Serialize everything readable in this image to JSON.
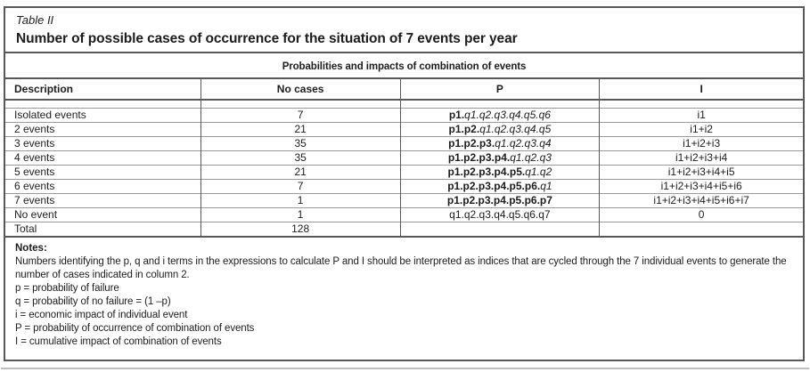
{
  "figure": {
    "label": "Table II",
    "title": "Number of possible cases of occurrence for the situation of 7 events per year",
    "subtitle": "Probabilities and impacts of combination of events",
    "columns": [
      "Description",
      "No cases",
      "P",
      "I"
    ],
    "rows": [
      {
        "description": "Isolated events",
        "cases": "7",
        "p_bold": "p1.",
        "p_italic": "q1.q2.q3.q4.q5.q6",
        "p_plain": "",
        "impact": "i1"
      },
      {
        "description": "2 events",
        "cases": "21",
        "p_bold": "p1.p2.",
        "p_italic": "q1.q2.q3.q4.q5",
        "p_plain": "",
        "impact": "i1+i2"
      },
      {
        "description": "3 events",
        "cases": "35",
        "p_bold": "p1.p2.p3.",
        "p_italic": "q1.q2.q3.q4",
        "p_plain": "",
        "impact": "i1+i2+i3"
      },
      {
        "description": "4 events",
        "cases": "35",
        "p_bold": "p1.p2.p3.p4.",
        "p_italic": "q1.q2.q3",
        "p_plain": "",
        "impact": "i1+i2+i3+i4"
      },
      {
        "description": "5 events",
        "cases": "21",
        "p_bold": "p1.p2.p3.p4.p5.",
        "p_italic": "q1.q2",
        "p_plain": "",
        "impact": "i1+i2+i3+i4+i5"
      },
      {
        "description": "6 events",
        "cases": "7",
        "p_bold": "p1.p2.p3.p4.p5.p6.",
        "p_italic": "q1",
        "p_plain": "",
        "impact": "i1+i2+i3+i4+i5+i6"
      },
      {
        "description": "7 events",
        "cases": "1",
        "p_bold": "p1.p2.p3.p4.p5.p6.p7",
        "p_italic": "",
        "p_plain": "",
        "impact": "i1+i2+i3+i4+i5+i6+i7"
      },
      {
        "description": "No event",
        "cases": "1",
        "p_bold": "",
        "p_italic": "",
        "p_plain": "q1.q2.q3.q4.q5.q6.q7",
        "impact": "0"
      },
      {
        "description": "Total",
        "cases": "128",
        "p_bold": "",
        "p_italic": "",
        "p_plain": "",
        "impact": ""
      }
    ],
    "notes_label": "Notes:",
    "notes": [
      "Numbers identifying the p, q and i terms in the expressions to calculate P and I should be interpreted as indices that are cycled through the 7 individual events to generate the number of cases indicated in column 2.",
      "p = probability of failure",
      "q = probability of no failure = (1 –p)",
      "i = economic impact of individual event",
      "P = probability of occurrence of combination of events",
      "I = cumulative impact of combination of events"
    ]
  }
}
